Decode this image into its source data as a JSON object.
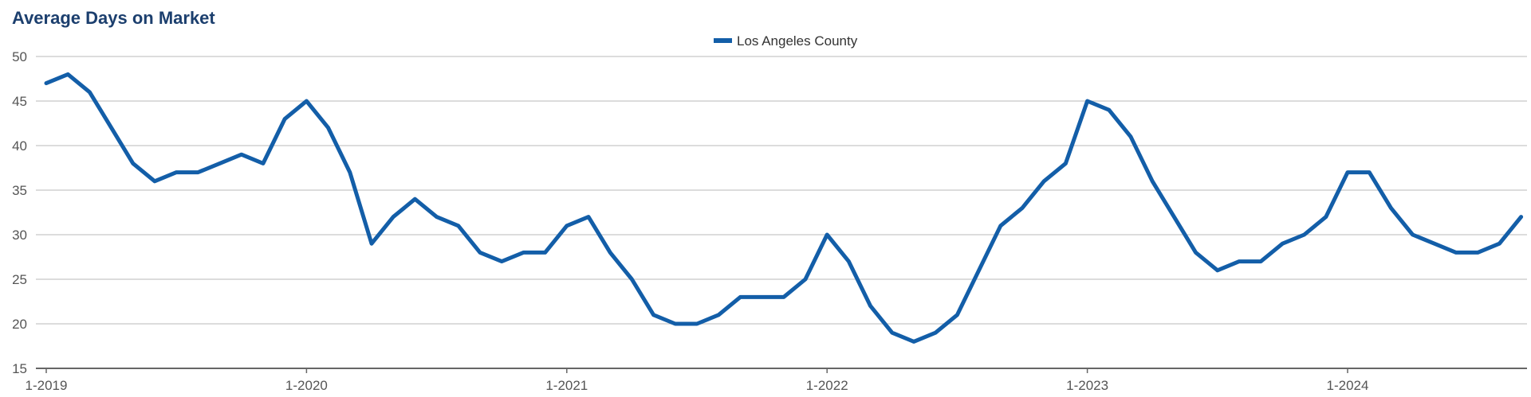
{
  "chart_data": {
    "type": "line",
    "title": "Average Days on Market",
    "xlabel": "",
    "ylabel": "",
    "ylim": [
      15,
      50
    ],
    "yticks": [
      15,
      20,
      25,
      30,
      35,
      40,
      45,
      50
    ],
    "xtick_labels": [
      "1-2019",
      "1-2020",
      "1-2021",
      "1-2022",
      "1-2023",
      "1-2024"
    ],
    "grid": true,
    "legend_position": "top-center",
    "x": [
      "1-2019",
      "2-2019",
      "3-2019",
      "4-2019",
      "5-2019",
      "6-2019",
      "7-2019",
      "8-2019",
      "9-2019",
      "10-2019",
      "11-2019",
      "12-2019",
      "1-2020",
      "2-2020",
      "3-2020",
      "4-2020",
      "5-2020",
      "6-2020",
      "7-2020",
      "8-2020",
      "9-2020",
      "10-2020",
      "11-2020",
      "12-2020",
      "1-2021",
      "2-2021",
      "3-2021",
      "4-2021",
      "5-2021",
      "6-2021",
      "7-2021",
      "8-2021",
      "9-2021",
      "10-2021",
      "11-2021",
      "12-2021",
      "1-2022",
      "2-2022",
      "3-2022",
      "4-2022",
      "5-2022",
      "6-2022",
      "7-2022",
      "8-2022",
      "9-2022",
      "10-2022",
      "11-2022",
      "12-2022",
      "1-2023",
      "2-2023",
      "3-2023",
      "4-2023",
      "5-2023",
      "6-2023",
      "7-2023",
      "8-2023",
      "9-2023",
      "10-2023",
      "11-2023",
      "12-2023",
      "1-2024",
      "2-2024",
      "3-2024",
      "4-2024",
      "5-2024",
      "6-2024",
      "7-2024",
      "8-2024",
      "9-2024"
    ],
    "series": [
      {
        "name": "Los Angeles County",
        "color": "#135ea8",
        "values": [
          47,
          48,
          46,
          42,
          38,
          36,
          37,
          37,
          38,
          39,
          38,
          43,
          45,
          42,
          37,
          29,
          32,
          34,
          32,
          31,
          28,
          27,
          28,
          28,
          31,
          32,
          28,
          25,
          21,
          20,
          20,
          21,
          23,
          23,
          23,
          25,
          30,
          27,
          22,
          19,
          18,
          19,
          21,
          26,
          31,
          33,
          36,
          38,
          45,
          44,
          41,
          36,
          32,
          28,
          26,
          27,
          27,
          29,
          30,
          32,
          37,
          37,
          33,
          30,
          29,
          28,
          28,
          29,
          32
        ]
      }
    ]
  }
}
